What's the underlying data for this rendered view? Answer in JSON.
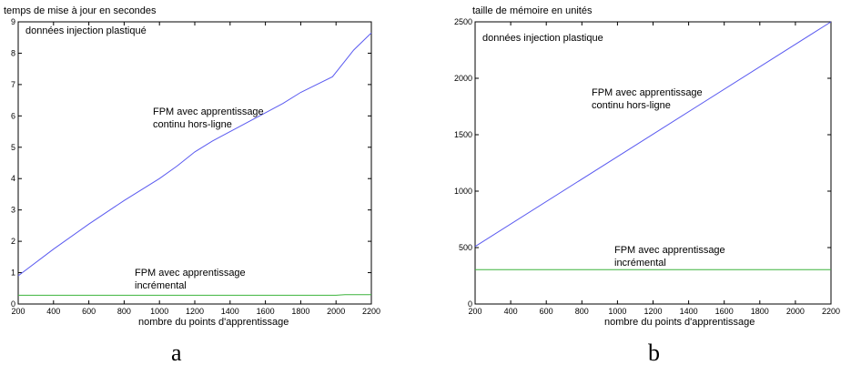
{
  "chart_data": [
    {
      "type": "line",
      "panel_label": "a",
      "title": "temps de mise à jour en secondes",
      "xlabel": "nombre du points d'apprentissage",
      "ylabel": "",
      "xlim": [
        200,
        2200
      ],
      "ylim": [
        0,
        9
      ],
      "x_ticks": [
        "200",
        "400",
        "600",
        "800",
        "1000",
        "1200",
        "1400",
        "1600",
        "1800",
        "2000",
        "2200"
      ],
      "y_ticks": [
        "0",
        "1",
        "2",
        "3",
        "4",
        "5",
        "6",
        "7",
        "8",
        "9"
      ],
      "dataset_label": "données injection plastiqué",
      "series": [
        {
          "color": "#5a5af0",
          "annotation": [
            "FPM avec apprentissage",
            "continu hors-ligne"
          ],
          "x": [
            200,
            400,
            600,
            800,
            1000,
            1100,
            1200,
            1300,
            1400,
            1600,
            1700,
            1800,
            1980,
            2100,
            2200
          ],
          "y": [
            0.9,
            1.75,
            2.55,
            3.3,
            4.0,
            4.4,
            4.85,
            5.2,
            5.5,
            6.1,
            6.4,
            6.75,
            7.25,
            8.1,
            8.65
          ]
        },
        {
          "color": "#3cb43c",
          "annotation": [
            "FPM avec apprentissage",
            "incrémental"
          ],
          "x": [
            200,
            2000,
            2050,
            2200
          ],
          "y": [
            0.28,
            0.28,
            0.3,
            0.3
          ]
        }
      ]
    },
    {
      "type": "line",
      "panel_label": "b",
      "title": "taille de mémoire en unités",
      "xlabel": "nombre du points d'apprentissage",
      "ylabel": "",
      "xlim": [
        200,
        2200
      ],
      "ylim": [
        0,
        2500
      ],
      "x_ticks": [
        "200",
        "400",
        "600",
        "800",
        "1000",
        "1200",
        "1400",
        "1600",
        "1800",
        "2000",
        "2200"
      ],
      "y_ticks": [
        "0",
        "500",
        "1000",
        "1500",
        "2000",
        "2500"
      ],
      "dataset_label": "données injection plastique",
      "series": [
        {
          "color": "#5a5af0",
          "annotation": [
            "FPM avec apprentissage",
            "continu hors-ligne"
          ],
          "x": [
            200,
            2200
          ],
          "y": [
            510,
            2500
          ]
        },
        {
          "color": "#3cb43c",
          "annotation": [
            "FPM avec apprentissage",
            "incrémental"
          ],
          "x": [
            200,
            2200
          ],
          "y": [
            305,
            305
          ]
        }
      ]
    }
  ]
}
